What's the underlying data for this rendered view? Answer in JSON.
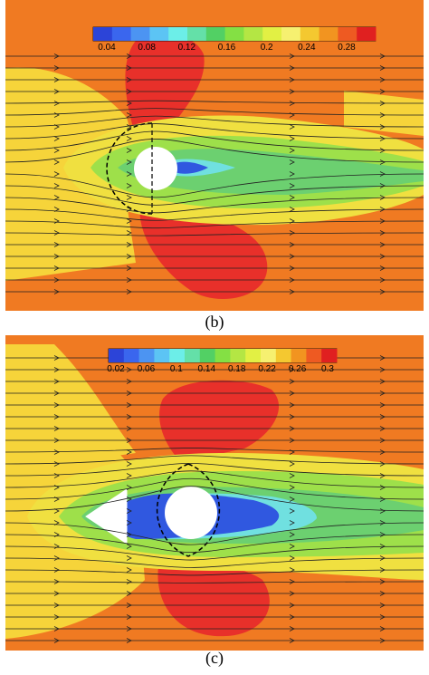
{
  "panels": [
    {
      "label": "(b)",
      "colorbar": {
        "ticks": [
          "0.04",
          "0.08",
          "0.12",
          "0.16",
          "0.2",
          "0.24",
          "0.28"
        ]
      }
    },
    {
      "label": "(c)",
      "colorbar": {
        "ticks": [
          "0.02",
          "0.06",
          "0.1",
          "0.14",
          "0.18",
          "0.22",
          "0.26",
          "0.3"
        ]
      }
    }
  ]
}
